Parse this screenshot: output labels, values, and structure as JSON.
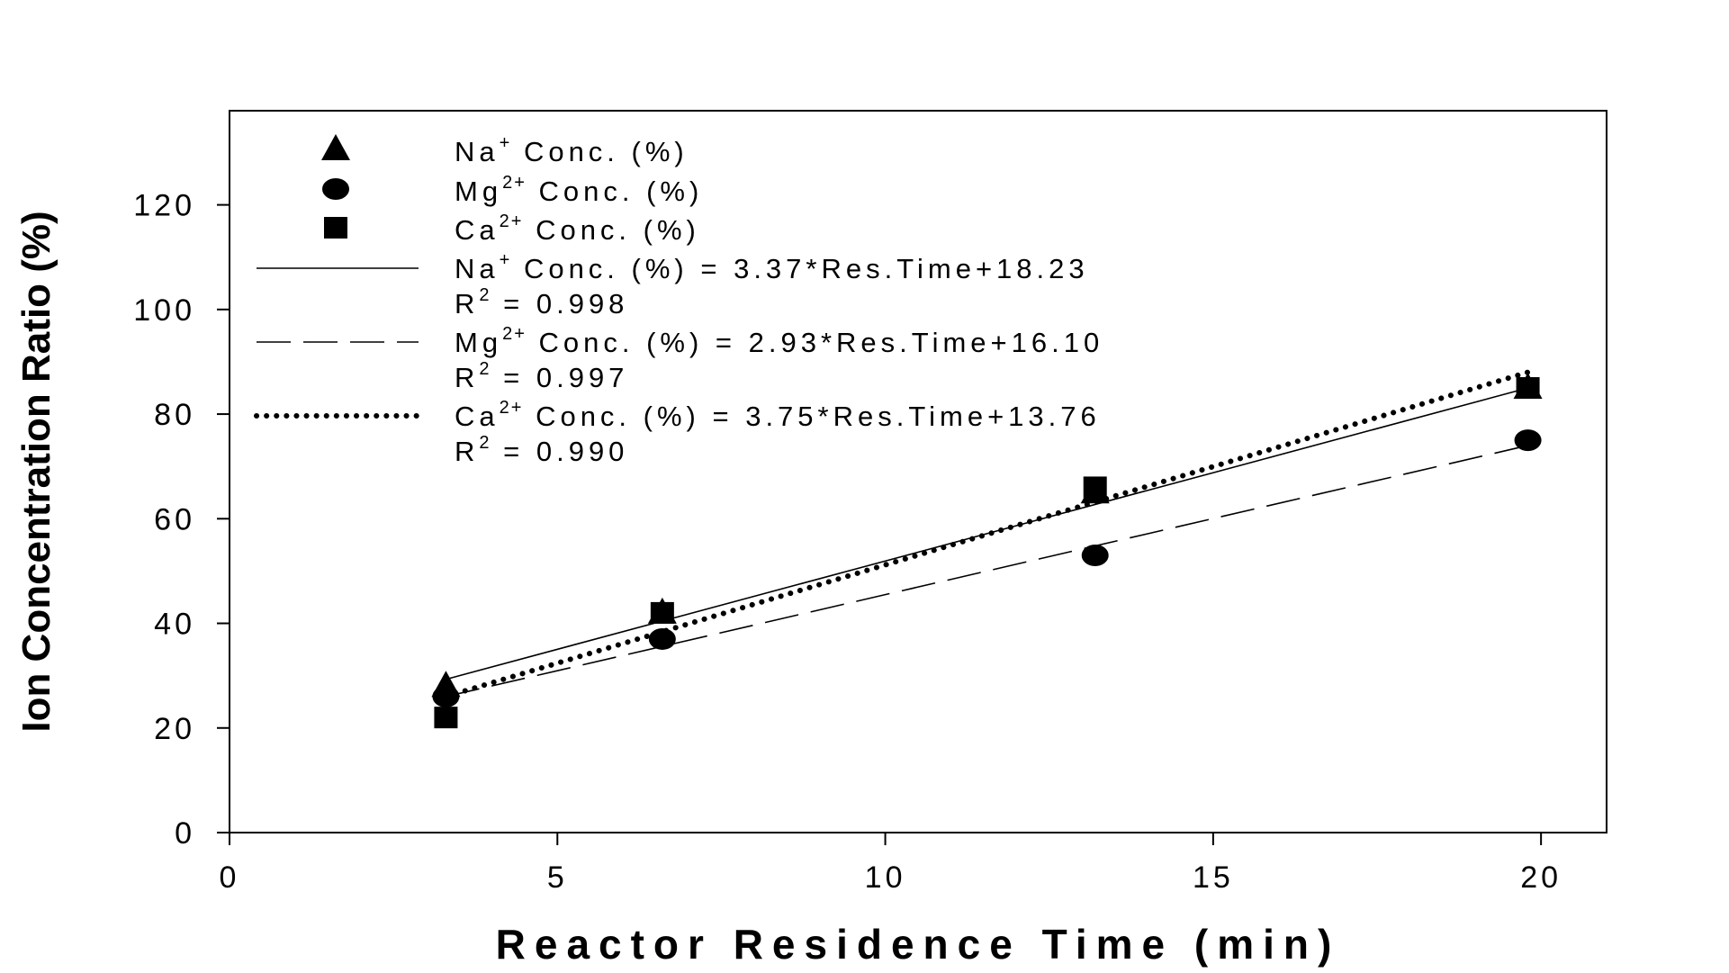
{
  "chart_data": {
    "type": "scatter",
    "title": "",
    "xlabel": "Reactor Residence Time (min)",
    "ylabel": "Ion Concentration Ratio (%)",
    "xlim": [
      0,
      21
    ],
    "ylim": [
      0,
      138
    ],
    "x_ticks": [
      0,
      5,
      10,
      15,
      20
    ],
    "y_ticks": [
      0,
      20,
      40,
      60,
      80,
      100,
      120
    ],
    "grid": false,
    "legend_position": "top-left",
    "series": [
      {
        "name": "Na+ Conc. (%)",
        "ion": "Na",
        "charge": "+",
        "marker": "triangle",
        "x": [
          3.3,
          6.6,
          13.2,
          19.8
        ],
        "y": [
          28,
          42,
          65,
          85
        ]
      },
      {
        "name": "Mg2+ Conc. (%)",
        "ion": "Mg",
        "charge": "2+",
        "marker": "circle",
        "x": [
          3.3,
          6.6,
          13.2,
          19.8
        ],
        "y": [
          26,
          37,
          53,
          75
        ]
      },
      {
        "name": "Ca2+ Conc. (%)",
        "ion": "Ca",
        "charge": "2+",
        "marker": "square",
        "x": [
          3.3,
          6.6,
          13.2,
          19.8
        ],
        "y": [
          22,
          42,
          66,
          85
        ]
      }
    ],
    "fits": [
      {
        "ion": "Na",
        "charge": "+",
        "equation_tail": " Conc. (%) = 3.37*Res.Time+18.23",
        "r2_text": " = 0.998",
        "line_style": "solid",
        "x_range": [
          3.3,
          19.8
        ],
        "y_range": [
          29.3,
          85
        ]
      },
      {
        "ion": "Mg",
        "charge": "2+",
        "equation_tail": " Conc. (%) = 2.93*Res.Time+16.10",
        "r2_text": " = 0.997",
        "line_style": "dashed",
        "x_range": [
          3.3,
          19.8
        ],
        "y_range": [
          26,
          74
        ]
      },
      {
        "ion": "Ca",
        "charge": "2+",
        "equation_tail": " Conc. (%) = 3.75*Res.Time+13.76",
        "r2_text": " = 0.990",
        "line_style": "dotted",
        "x_range": [
          3.3,
          19.8
        ],
        "y_range": [
          26,
          88
        ]
      }
    ],
    "legend": {
      "marker_label_tail": " Conc. (%)",
      "r2_prefix": "R",
      "r2_sup": "2"
    }
  }
}
